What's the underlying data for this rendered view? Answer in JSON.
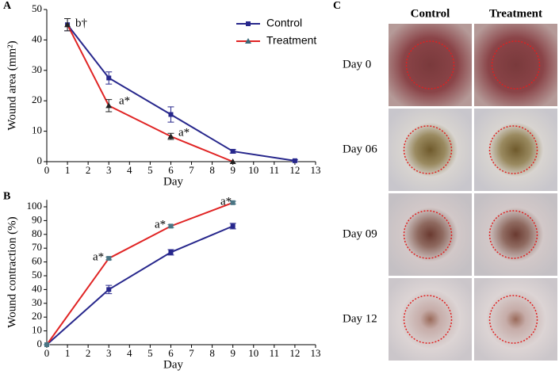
{
  "chart_data": [
    {
      "type": "line",
      "panel_label": "A",
      "x_label": "Day",
      "y_label": "Wound area (mm²)",
      "xlim": [
        0,
        13
      ],
      "xticks": [
        0,
        1,
        2,
        3,
        4,
        5,
        6,
        7,
        8,
        9,
        10,
        11,
        12,
        13
      ],
      "ylim": [
        0,
        50
      ],
      "yticks": [
        0,
        10,
        20,
        30,
        40,
        50
      ],
      "legend": "upper right",
      "series": [
        {
          "name": "Control",
          "color": "#27278c",
          "marker": "square",
          "marker_color": "#27278c",
          "x": [
            1,
            3,
            6,
            9,
            12
          ],
          "values": [
            45,
            27.5,
            15.5,
            3.4,
            0.3
          ],
          "errors": [
            2,
            2,
            2.5,
            0.6,
            0.3
          ]
        },
        {
          "name": "Treatment",
          "color": "#e02424",
          "marker": "triangle",
          "marker_color": "#222222",
          "x": [
            1,
            3,
            6,
            9
          ],
          "values": [
            45,
            18.4,
            8.3,
            0
          ],
          "errors": [
            2,
            2,
            1,
            0
          ]
        }
      ],
      "annotations": [
        "b†",
        "a*",
        "a*"
      ]
    },
    {
      "type": "line",
      "panel_label": "B",
      "x_label": "Day",
      "y_label": "Wound contraction (%)",
      "xlim": [
        0,
        13
      ],
      "xticks": [
        0,
        1,
        2,
        3,
        4,
        5,
        6,
        7,
        8,
        9,
        10,
        11,
        12,
        13
      ],
      "ylim": [
        0,
        105
      ],
      "yticks": [
        0,
        10,
        20,
        30,
        40,
        50,
        60,
        70,
        80,
        90,
        100
      ],
      "series": [
        {
          "color": "#27278c",
          "marker": "square",
          "marker_color": "#27278c",
          "x": [
            0,
            3,
            6,
            9
          ],
          "values": [
            0,
            40,
            67,
            86
          ],
          "errors": [
            0,
            3,
            2,
            2
          ]
        },
        {
          "color": "#e02424",
          "marker": "square",
          "marker_color": "#4a7584",
          "x": [
            0,
            3,
            6,
            9
          ],
          "values": [
            0,
            62.6,
            86,
            103
          ],
          "errors": [
            0,
            1,
            1,
            1
          ]
        }
      ],
      "annotations": [
        "a*",
        "a*",
        "a*"
      ]
    }
  ],
  "photo_panel": {
    "panel_label": "C",
    "columns": [
      "Control",
      "Treatment"
    ],
    "rows": [
      "Day 0",
      "Day 06",
      "Day 09",
      "Day 12"
    ]
  }
}
